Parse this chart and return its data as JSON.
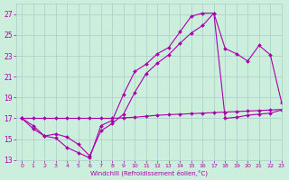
{
  "bg_color": "#cceedd",
  "line_color": "#aa00aa",
  "grid_color": "#aacccc",
  "xlabel": "Windchill (Refroidissement éolien,°C)",
  "xlim": [
    -0.5,
    23
  ],
  "ylim": [
    13,
    28
  ],
  "yticks": [
    13,
    15,
    17,
    19,
    21,
    23,
    25,
    27
  ],
  "xticks": [
    0,
    1,
    2,
    3,
    4,
    5,
    6,
    7,
    8,
    9,
    10,
    11,
    12,
    13,
    14,
    15,
    16,
    17,
    18,
    19,
    20,
    21,
    22,
    23
  ],
  "series": [
    {
      "x": [
        0,
        1,
        2,
        3,
        4,
        5,
        6,
        7,
        8,
        9,
        10,
        11,
        12,
        13,
        14,
        15,
        16,
        17,
        18,
        19,
        20,
        21,
        22,
        23
      ],
      "y": [
        17.0,
        16.0,
        15.3,
        15.1,
        14.2,
        13.7,
        13.2,
        16.3,
        16.8,
        19.3,
        21.5,
        22.2,
        23.2,
        23.8,
        25.3,
        26.8,
        27.1,
        27.1,
        23.7,
        23.2,
        22.5,
        24.0,
        23.1,
        18.5
      ]
    },
    {
      "x": [
        0,
        1,
        2,
        3,
        4,
        5,
        6,
        7,
        8,
        9,
        10,
        11,
        12,
        13,
        14,
        15,
        16,
        17,
        18,
        19,
        20,
        21,
        22,
        23
      ],
      "y": [
        17.0,
        16.3,
        15.3,
        15.5,
        15.2,
        14.5,
        13.4,
        15.8,
        16.5,
        17.4,
        19.5,
        21.3,
        22.3,
        23.1,
        24.2,
        25.2,
        25.9,
        27.1,
        17.0,
        17.1,
        17.3,
        17.4,
        17.5,
        17.8
      ]
    },
    {
      "x": [
        0,
        1,
        2,
        3,
        4,
        5,
        6,
        7,
        8,
        9,
        10,
        11,
        12,
        13,
        14,
        15,
        16,
        17,
        18,
        19,
        20,
        21,
        22,
        23
      ],
      "y": [
        17.0,
        17.0,
        17.0,
        17.0,
        17.0,
        17.0,
        17.0,
        17.0,
        17.0,
        17.05,
        17.1,
        17.2,
        17.3,
        17.35,
        17.4,
        17.45,
        17.5,
        17.55,
        17.6,
        17.65,
        17.7,
        17.75,
        17.8,
        17.85
      ]
    }
  ]
}
